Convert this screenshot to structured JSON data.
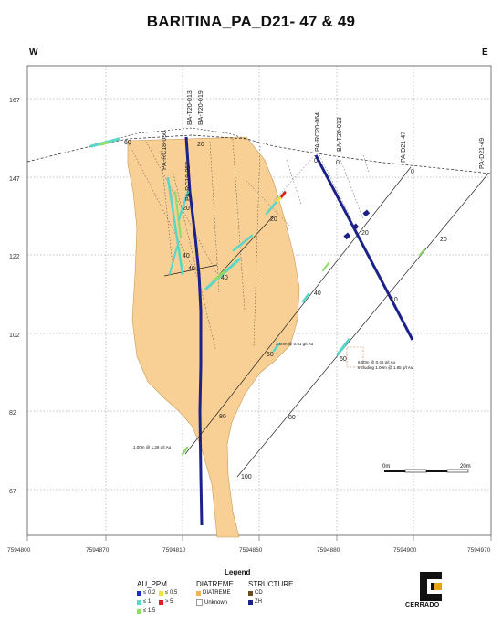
{
  "title": "BARITINA_PA_D21- 47 & 49",
  "direction_west": "W",
  "direction_east": "E",
  "elevation_labels": [
    "167",
    "147",
    "122",
    "102",
    "82",
    "67"
  ],
  "easting_labels": [
    "7594800",
    "7594870",
    "7594810",
    "7594860",
    "7594880",
    "7594900",
    "7594970"
  ],
  "hole_labels": [
    "BA-T20-013",
    "BA-T20-019",
    "PA-RC18-050",
    "PA-RC18-057",
    "PA-RC20-064",
    "BA-T20-013",
    "PA-D21-47",
    "PA-D21-49"
  ],
  "depth_labels": [
    "60",
    "20",
    "20",
    "40",
    "40",
    "20",
    "40",
    "20",
    "10",
    "60",
    "80",
    "80",
    "100",
    "0",
    "0",
    "20",
    "40",
    "60",
    "0",
    "20"
  ],
  "intercepts": [
    "3.00m @ 0.51 g/t Au",
    "6.00m @ 0.46 g/t Au",
    "Including 1.00m @ 1.85 g/t Au",
    "1.00m @ 1.28 g/t Au"
  ],
  "scale_bar": {
    "left": "0m",
    "right": "20m"
  },
  "legend": {
    "title": "Legend",
    "au_ppm": {
      "heading": "AU_PPM",
      "items": [
        "≤ 0.2",
        "≤ 0.5",
        "≤ 1",
        "> 5",
        "≤ 1.5"
      ],
      "colors": [
        "#1a2fc8",
        "#f2e33a",
        "#58d7c8",
        "#e02020",
        "#8fdc6a"
      ]
    },
    "diatreme": {
      "heading": "DIATREME",
      "items": [
        "DIATREME",
        "Unknown"
      ],
      "colors": [
        "#f3b24e",
        "#ffffff"
      ]
    },
    "structure": {
      "heading": "STRUCTURE",
      "items": [
        "CD",
        "ZH"
      ],
      "colors": [
        "#6b4a1e",
        "#1c2289"
      ]
    }
  },
  "logo": {
    "text": "CERRADO"
  }
}
